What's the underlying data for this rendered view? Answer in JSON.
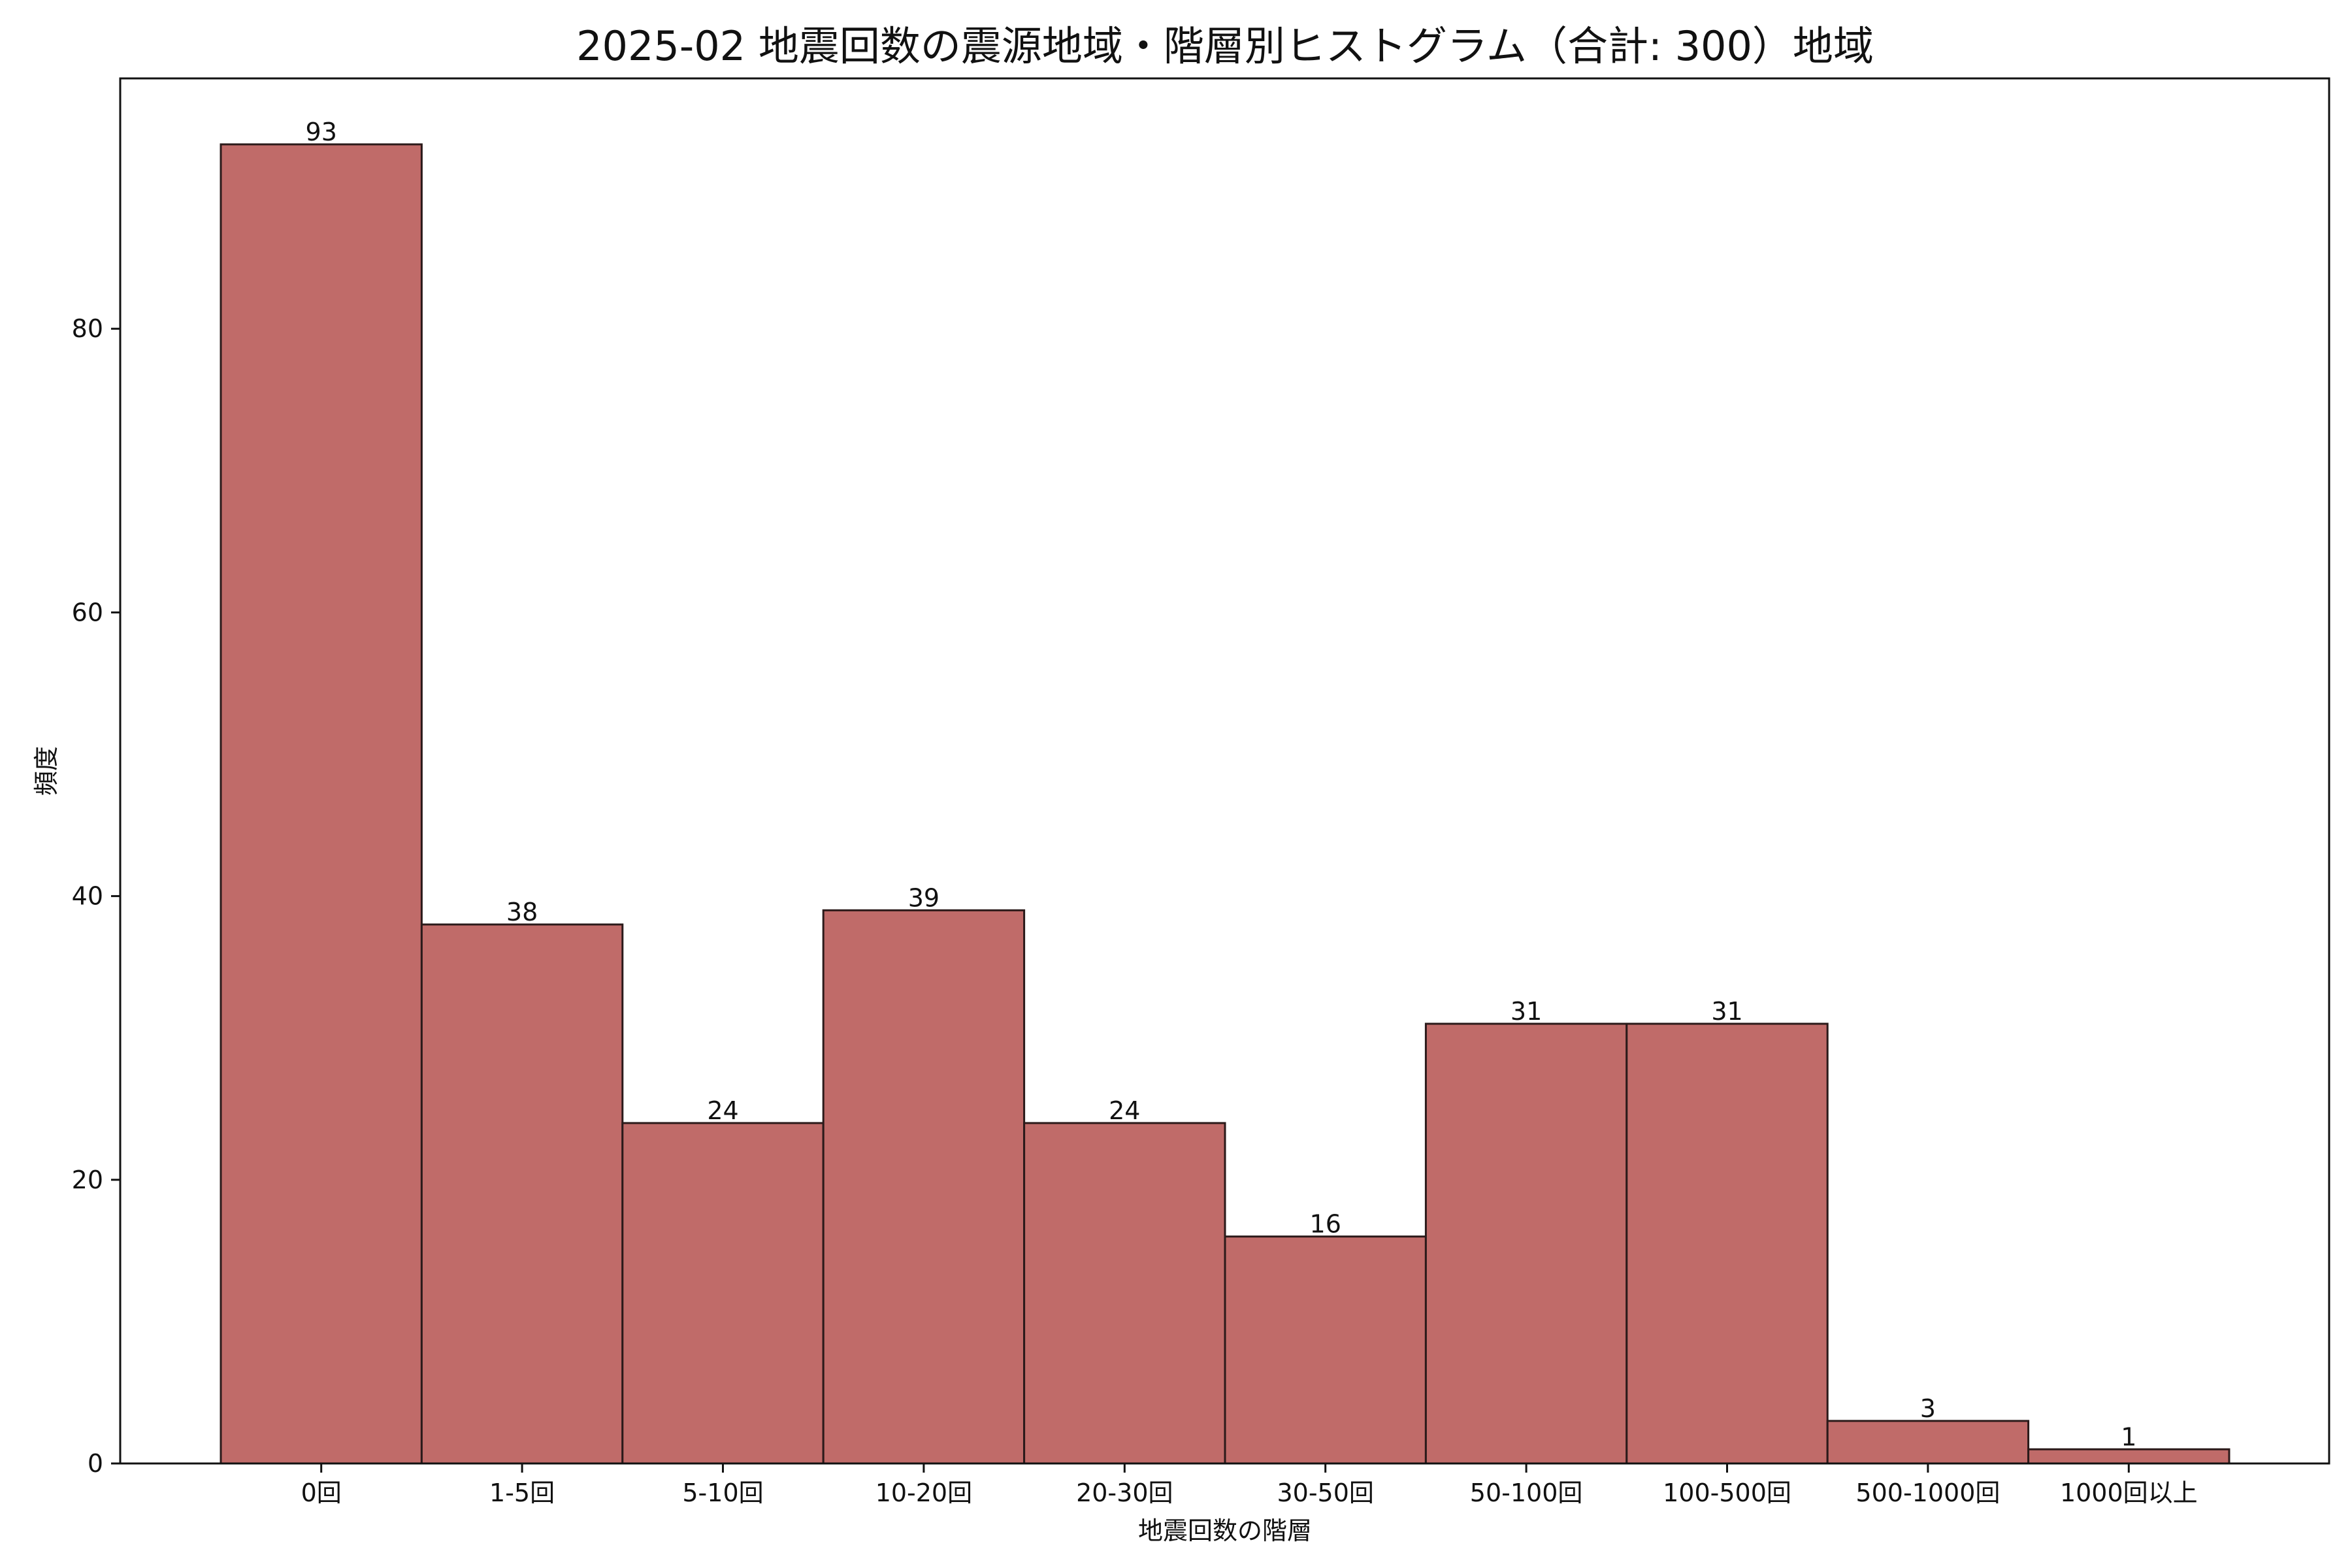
{
  "chart_data": {
    "type": "bar",
    "title": "2025-02 地震回数の震源地域・階層別ヒストグラム（合計: 300）地域",
    "xlabel": "地震回数の階層",
    "ylabel": "頻度",
    "categories": [
      "0回",
      "1-5回",
      "5-10回",
      "10-20回",
      "20-30回",
      "30-50回",
      "50-100回",
      "100-500回",
      "500-1000回",
      "1000回以上"
    ],
    "values": [
      93,
      38,
      24,
      39,
      24,
      16,
      31,
      31,
      3,
      1
    ],
    "data_labels": [
      "93",
      "38",
      "24",
      "39",
      "24",
      "16",
      "31",
      "31",
      "3",
      "1"
    ],
    "ylim": [
      0,
      97.65
    ],
    "yticks": [
      0,
      20,
      40,
      60,
      80
    ],
    "ytick_labels": [
      "0",
      "20",
      "40",
      "60",
      "80"
    ],
    "grid": false,
    "legend": "none",
    "bar_color": "#c06b69",
    "bar_edge_color": "#2b1a1a"
  }
}
